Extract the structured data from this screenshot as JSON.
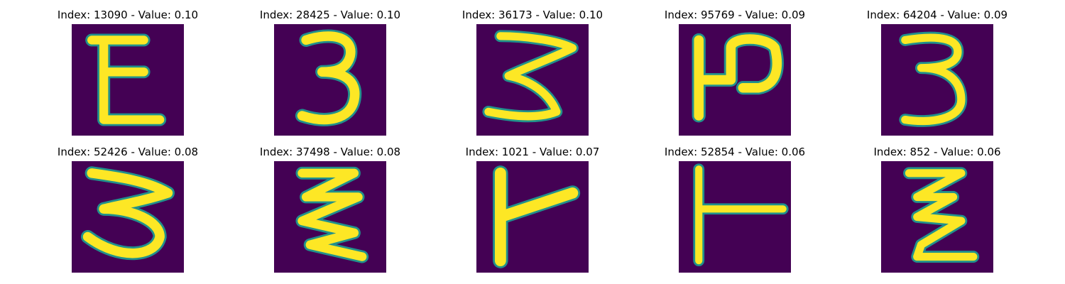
{
  "panels": [
    {
      "title": "Index: 13090 - Value: 0.10",
      "glyph": "E"
    },
    {
      "title": "Index: 28425 - Value: 0.10",
      "glyph": "3"
    },
    {
      "title": "Index: 36173 - Value: 0.10",
      "glyph": "3-wavy"
    },
    {
      "title": "Index: 95769 - Value: 0.09",
      "glyph": "rotated-P"
    },
    {
      "title": "Index: 64204 - Value: 0.09",
      "glyph": "3"
    },
    {
      "title": "Index: 52426 - Value: 0.08",
      "glyph": "3-wide"
    },
    {
      "title": "Index: 37498 - Value: 0.08",
      "glyph": "zigzag"
    },
    {
      "title": "Index: 1021 - Value: 0.07",
      "glyph": "T-rotated"
    },
    {
      "title": "Index: 52854 - Value: 0.06",
      "glyph": "T-rotated-thin"
    },
    {
      "title": "Index: 852 - Value: 0.06",
      "glyph": "z-zigzag"
    }
  ],
  "colors": {
    "background": "#440154",
    "stroke": "#fde725",
    "edge": "#21918c"
  }
}
